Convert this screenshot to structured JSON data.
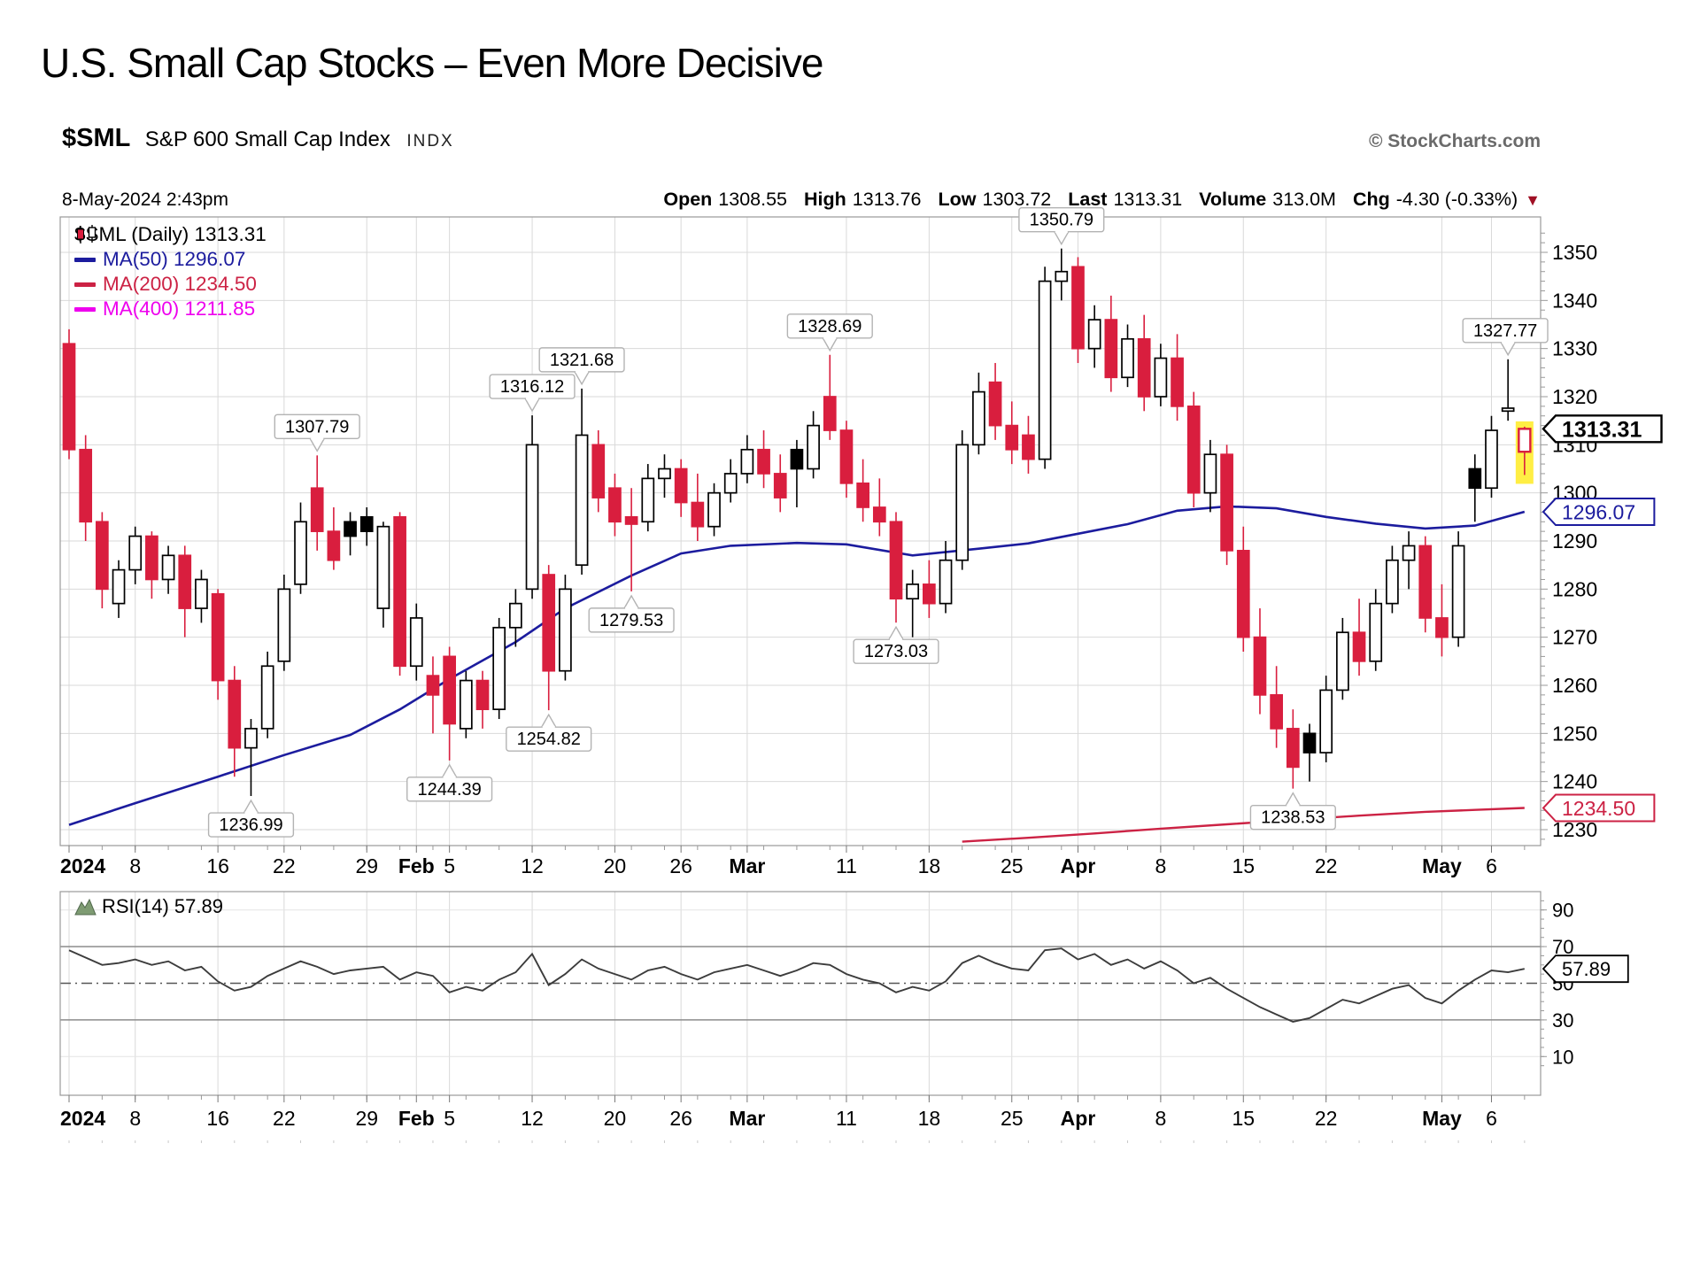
{
  "title": "U.S. Small Cap Stocks – Even More Decisive",
  "header": {
    "symbol": "$SML",
    "name": "S&P 600 Small Cap Index",
    "exchange": "INDX",
    "copyright": "© StockCharts.com"
  },
  "quote": {
    "datetime": "8-May-2024 2:43pm",
    "open_label": "Open",
    "open": "1308.55",
    "high_label": "High",
    "high": "1313.76",
    "low_label": "Low",
    "low": "1303.72",
    "last_label": "Last",
    "last": "1313.31",
    "volume_label": "Volume",
    "volume": "313.0M",
    "chg_label": "Chg",
    "chg": "-4.30 (-0.33%)"
  },
  "legend": {
    "items": [
      {
        "label": "$SML (Daily) 1313.31",
        "color": "#000000"
      },
      {
        "label": "MA(50) 1296.07",
        "color": "#1c1c9e"
      },
      {
        "label": "MA(200) 1234.50",
        "color": "#cc2244"
      },
      {
        "label": "MA(400) 1211.85",
        "color": "#ee00ee"
      }
    ]
  },
  "colors": {
    "candle_up": "#000000",
    "candle_down": "#d91e3e",
    "ma50": "#1c1c9e",
    "ma200": "#cc2244",
    "ma400": "#ee00ee",
    "highlight": "#ffee44",
    "grid": "#d9d9d9",
    "axis": "#999999",
    "chg_arrow": "#a01025",
    "rsi_line": "#3c3c3c",
    "rsi_icon": "#7e9b72"
  },
  "chart_data": {
    "type": "candlestick",
    "title": "$SML (Daily)",
    "price_panel": {
      "ylim": [
        1226.7,
        1357.4
      ],
      "yticks": [
        1230,
        1240,
        1250,
        1260,
        1270,
        1280,
        1290,
        1300,
        1310,
        1320,
        1330,
        1340,
        1350
      ],
      "last_tag": "1313.31",
      "ma50_tag": "1296.07",
      "ma200_tag": "1234.50",
      "candles": [
        [
          1331,
          1334,
          1307,
          1309
        ],
        [
          1309,
          1312,
          1290,
          1294
        ],
        [
          1294,
          1296,
          1276,
          1280
        ],
        [
          1277,
          1286,
          1274,
          1284
        ],
        [
          1284,
          1293,
          1281,
          1291
        ],
        [
          1291,
          1292,
          1278,
          1282
        ],
        [
          1282,
          1289,
          1279,
          1287
        ],
        [
          1287,
          1289,
          1270,
          1276
        ],
        [
          1276,
          1284,
          1273,
          1282
        ],
        [
          1279,
          1280,
          1257,
          1261
        ],
        [
          1261,
          1264,
          1241,
          1247
        ],
        [
          1247,
          1253,
          1236.99,
          1251
        ],
        [
          1251,
          1267,
          1249,
          1264
        ],
        [
          1265,
          1283,
          1263,
          1280
        ],
        [
          1281,
          1298,
          1279,
          1294
        ],
        [
          1301,
          1307.79,
          1288,
          1292
        ],
        [
          1292,
          1297,
          1284,
          1286
        ],
        [
          1294,
          1296,
          1287,
          1291
        ],
        [
          1295,
          1297,
          1289,
          1292
        ],
        [
          1276,
          1294,
          1272,
          1293
        ],
        [
          1295,
          1296,
          1262,
          1264
        ],
        [
          1264,
          1277,
          1261,
          1274
        ],
        [
          1262,
          1266,
          1250,
          1258
        ],
        [
          1266,
          1268,
          1244.39,
          1252
        ],
        [
          1251,
          1263,
          1249,
          1261
        ],
        [
          1261,
          1263,
          1251,
          1255
        ],
        [
          1255,
          1274,
          1253,
          1272
        ],
        [
          1272,
          1280,
          1268,
          1277
        ],
        [
          1280,
          1316.12,
          1278,
          1310
        ],
        [
          1283,
          1285,
          1254.82,
          1263
        ],
        [
          1263,
          1283,
          1261,
          1280
        ],
        [
          1285,
          1321.68,
          1283,
          1312
        ],
        [
          1310,
          1313,
          1296,
          1299
        ],
        [
          1301,
          1304,
          1291,
          1294
        ],
        [
          1295,
          1301,
          1279.53,
          1293.5
        ],
        [
          1294,
          1306,
          1292,
          1303
        ],
        [
          1303,
          1308,
          1299,
          1305
        ],
        [
          1305,
          1307,
          1295,
          1298
        ],
        [
          1298,
          1304,
          1290,
          1293
        ],
        [
          1293,
          1302,
          1291,
          1300
        ],
        [
          1300,
          1307,
          1298,
          1304
        ],
        [
          1304,
          1312,
          1302,
          1309
        ],
        [
          1309,
          1313,
          1301,
          1304
        ],
        [
          1304,
          1308,
          1296,
          1299
        ],
        [
          1309,
          1311,
          1297,
          1305
        ],
        [
          1305,
          1317,
          1303,
          1314
        ],
        [
          1320,
          1328.69,
          1311,
          1313
        ],
        [
          1313,
          1315,
          1299,
          1302
        ],
        [
          1302,
          1307,
          1294,
          1297
        ],
        [
          1297,
          1303,
          1291,
          1294
        ],
        [
          1294,
          1296,
          1273.03,
          1278
        ],
        [
          1278,
          1284,
          1270,
          1281
        ],
        [
          1281,
          1286,
          1274,
          1277
        ],
        [
          1277,
          1290,
          1275,
          1286
        ],
        [
          1286,
          1313,
          1284,
          1310
        ],
        [
          1310,
          1325,
          1308,
          1321
        ],
        [
          1323,
          1327,
          1311,
          1314
        ],
        [
          1314,
          1319,
          1306,
          1309
        ],
        [
          1312,
          1316,
          1304,
          1307
        ],
        [
          1307,
          1347,
          1305,
          1344
        ],
        [
          1344,
          1350.79,
          1340,
          1346
        ],
        [
          1347,
          1349,
          1327,
          1330
        ],
        [
          1330,
          1339,
          1326,
          1336
        ],
        [
          1336,
          1341,
          1321,
          1324
        ],
        [
          1324,
          1335,
          1322,
          1332
        ],
        [
          1332,
          1337,
          1317,
          1320
        ],
        [
          1320,
          1331,
          1318,
          1328
        ],
        [
          1328,
          1333,
          1315,
          1318
        ],
        [
          1318,
          1321,
          1297,
          1300
        ],
        [
          1300,
          1311,
          1296,
          1308
        ],
        [
          1308,
          1310,
          1285,
          1288
        ],
        [
          1288,
          1293,
          1267,
          1270
        ],
        [
          1270,
          1276,
          1254,
          1258
        ],
        [
          1258,
          1264,
          1247,
          1251
        ],
        [
          1251,
          1255,
          1238.53,
          1243
        ],
        [
          1250,
          1252,
          1240,
          1246
        ],
        [
          1246,
          1262,
          1244,
          1259
        ],
        [
          1259,
          1274,
          1257,
          1271
        ],
        [
          1271,
          1278,
          1262,
          1265
        ],
        [
          1265,
          1280,
          1263,
          1277
        ],
        [
          1277,
          1289,
          1275,
          1286
        ],
        [
          1286,
          1292,
          1280,
          1289
        ],
        [
          1289,
          1291,
          1271,
          1274
        ],
        [
          1274,
          1281,
          1266,
          1270
        ],
        [
          1270,
          1292,
          1268,
          1289
        ],
        [
          1305,
          1308,
          1294,
          1301
        ],
        [
          1301,
          1316,
          1299,
          1313
        ],
        [
          1317,
          1327.77,
          1315,
          1317.61
        ],
        [
          1308.55,
          1313.76,
          1303.72,
          1313.31
        ]
      ],
      "ma50": [
        [
          0,
          1231
        ],
        [
          4,
          1235.5
        ],
        [
          9,
          1241
        ],
        [
          13,
          1245.5
        ],
        [
          17,
          1249.7
        ],
        [
          20,
          1255
        ],
        [
          23,
          1261.3
        ],
        [
          27,
          1269
        ],
        [
          30,
          1276
        ],
        [
          34,
          1282.8
        ],
        [
          37,
          1287.4
        ],
        [
          40,
          1289
        ],
        [
          44,
          1289.6
        ],
        [
          47,
          1289.3
        ],
        [
          51,
          1287.0
        ],
        [
          55,
          1288.4
        ],
        [
          58,
          1289.5
        ],
        [
          61,
          1291.5
        ],
        [
          64,
          1293.5
        ],
        [
          67,
          1296.3
        ],
        [
          70,
          1297.2
        ],
        [
          73,
          1296.8
        ],
        [
          76,
          1295.0
        ],
        [
          79,
          1293.6
        ],
        [
          82,
          1292.6
        ],
        [
          85,
          1293.2
        ],
        [
          88,
          1296.07
        ]
      ],
      "ma200": [
        [
          54,
          1227.5
        ],
        [
          58,
          1228.3
        ],
        [
          62,
          1229.2
        ],
        [
          66,
          1230.2
        ],
        [
          70,
          1231.1
        ],
        [
          74,
          1232
        ],
        [
          78,
          1232.9
        ],
        [
          82,
          1233.7
        ],
        [
          85,
          1234.1
        ],
        [
          88,
          1234.5
        ]
      ],
      "annotations_high": [
        [
          15,
          1307.79
        ],
        [
          28,
          1316.12
        ],
        [
          31,
          1321.68
        ],
        [
          46,
          1328.69
        ],
        [
          60,
          1350.79
        ],
        [
          87,
          1327.77
        ]
      ],
      "annotations_low": [
        [
          11,
          1236.99
        ],
        [
          23,
          1244.39
        ],
        [
          29,
          1254.82
        ],
        [
          34,
          1279.53
        ],
        [
          50,
          1273.03
        ],
        [
          74,
          1238.53
        ]
      ]
    },
    "rsi_panel": {
      "label": "RSI(14) 57.89",
      "tag": "57.89",
      "yticks": [
        90,
        70,
        50,
        30,
        10
      ],
      "overbought": 70,
      "oversold": 30,
      "mid": 50,
      "values": [
        68,
        64,
        60,
        61,
        63,
        60,
        62,
        57,
        59,
        51,
        46,
        48,
        54,
        58,
        62,
        59,
        55,
        57,
        58,
        59,
        52,
        56,
        54,
        45,
        48,
        46,
        52,
        56,
        66,
        49,
        55,
        63,
        58,
        55,
        52,
        57,
        59,
        55,
        52,
        56,
        58,
        60,
        57,
        54,
        57,
        61,
        60,
        55,
        52,
        50,
        45,
        48,
        46,
        51,
        61,
        65,
        61,
        58,
        57,
        68,
        69,
        63,
        66,
        60,
        63,
        58,
        62,
        57,
        50,
        53,
        47,
        42,
        37,
        33,
        29,
        31,
        36,
        41,
        39,
        43,
        47,
        49,
        42,
        39,
        46,
        52,
        57,
        56,
        57.89
      ]
    },
    "xticks": [
      [
        0,
        "2024",
        1
      ],
      [
        4,
        "8",
        0
      ],
      [
        9,
        "16",
        0
      ],
      [
        13,
        "22",
        0
      ],
      [
        18,
        "29",
        0
      ],
      [
        21,
        "Feb",
        1
      ],
      [
        23,
        "5",
        0
      ],
      [
        28,
        "12",
        0
      ],
      [
        33,
        "20",
        0
      ],
      [
        37,
        "26",
        0
      ],
      [
        41,
        "Mar",
        1
      ],
      [
        47,
        "11",
        0
      ],
      [
        52,
        "18",
        0
      ],
      [
        57,
        "25",
        0
      ],
      [
        61,
        "Apr",
        1
      ],
      [
        66,
        "8",
        0
      ],
      [
        71,
        "15",
        0
      ],
      [
        76,
        "22",
        0
      ],
      [
        83,
        "May",
        1
      ],
      [
        86,
        "6",
        0
      ]
    ]
  }
}
